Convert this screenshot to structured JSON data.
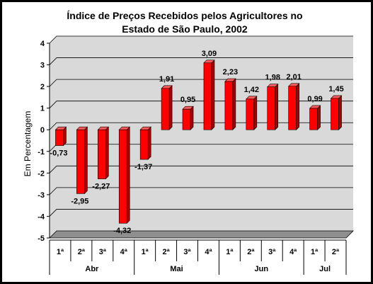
{
  "chart_data": {
    "type": "bar",
    "title": "Índice de Preços Recebidos pelos Agricultores no",
    "subtitle": "Estado de São Paulo, 2002",
    "xlabel": "",
    "ylabel": "Em Percentagem",
    "ylim": [
      -5,
      4
    ],
    "yticks": [
      "4",
      "3",
      "2",
      "1",
      "0",
      "-1",
      "-2",
      "-3",
      "-4",
      "-5"
    ],
    "grid": true,
    "legend": "none",
    "bar_color": "#ff0000",
    "bar_side_color": "#a50000",
    "plot_background": "#d9d9d9",
    "categories": [
      "1ª",
      "2ª",
      "3ª",
      "4ª",
      "1ª",
      "2ª",
      "3ª",
      "4ª",
      "1ª",
      "2ª",
      "3ª",
      "4ª",
      "1ª",
      "2ª"
    ],
    "groups": [
      {
        "label": "Abr",
        "count": 4
      },
      {
        "label": "Mai",
        "count": 4
      },
      {
        "label": "Jun",
        "count": 4
      },
      {
        "label": "Jul",
        "count": 2
      }
    ],
    "values": [
      -0.73,
      -2.95,
      -2.27,
      -4.32,
      -1.37,
      1.91,
      0.95,
      3.09,
      2.23,
      1.42,
      1.98,
      2.01,
      0.99,
      1.45
    ],
    "value_labels": [
      "-0,73",
      "-2,95",
      "-2,27",
      "-4,32",
      "-1,37",
      "1,91",
      "0,95",
      "3,09",
      "2,23",
      "1,42",
      "1,98",
      "2,01",
      "0,99",
      "1,45"
    ]
  }
}
